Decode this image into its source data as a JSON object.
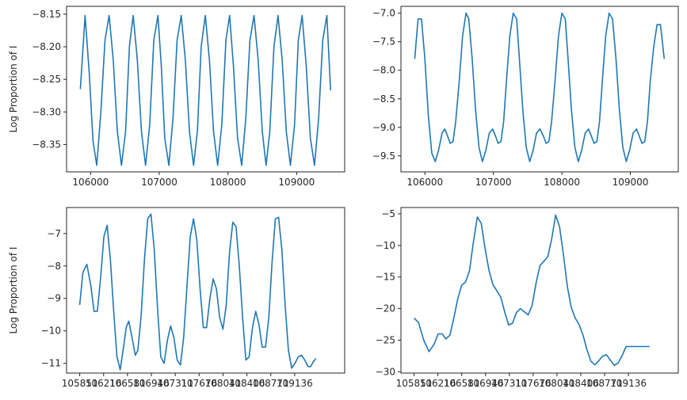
{
  "chart_data": [
    {
      "type": "line",
      "ylabel": "Log Proportion of I",
      "xlim": [
        105650,
        109700
      ],
      "ylim": [
        -8.392,
        -8.138
      ],
      "xticks": [
        106000,
        107000,
        108000,
        109000
      ],
      "xtick_labels": [
        "106000",
        "107000",
        "108000",
        "109000"
      ],
      "yticks": [
        -8.35,
        -8.3,
        -8.25,
        -8.2,
        -8.15
      ],
      "ytick_labels": [
        "−8.35",
        "−8.30",
        "−8.25",
        "−8.20",
        "−8.15"
      ],
      "series": [
        {
          "color": "#1f77b4",
          "x": [
            105851,
            105920,
            105980,
            106035,
            106090,
            106150,
            106210,
            106270,
            106330,
            106390,
            106450,
            106510,
            106565,
            106620,
            106680,
            106740,
            106800,
            106860,
            106920,
            106980,
            107030,
            107080,
            107140,
            107200,
            107260,
            107320,
            107380,
            107440,
            107500,
            107555,
            107610,
            107670,
            107730,
            107790,
            107850,
            107910,
            107970,
            108025,
            108080,
            108140,
            108200,
            108260,
            108320,
            108380,
            108440,
            108500,
            108555,
            108610,
            108670,
            108730,
            108790,
            108850,
            108910,
            108970,
            109025,
            109080,
            109140,
            109200,
            109260,
            109320,
            109380,
            109440,
            109495
          ],
          "y": [
            -8.265,
            -8.152,
            -8.24,
            -8.345,
            -8.382,
            -8.3,
            -8.19,
            -8.152,
            -8.22,
            -8.33,
            -8.382,
            -8.33,
            -8.2,
            -8.152,
            -8.22,
            -8.33,
            -8.382,
            -8.32,
            -8.19,
            -8.152,
            -8.23,
            -8.34,
            -8.382,
            -8.31,
            -8.19,
            -8.152,
            -8.22,
            -8.33,
            -8.382,
            -8.33,
            -8.2,
            -8.152,
            -8.22,
            -8.33,
            -8.382,
            -8.32,
            -8.19,
            -8.152,
            -8.23,
            -8.34,
            -8.382,
            -8.31,
            -8.19,
            -8.152,
            -8.22,
            -8.33,
            -8.382,
            -8.33,
            -8.2,
            -8.152,
            -8.22,
            -8.33,
            -8.382,
            -8.32,
            -8.19,
            -8.152,
            -8.23,
            -8.34,
            -8.382,
            -8.31,
            -8.19,
            -8.152,
            -8.267
          ]
        }
      ]
    },
    {
      "type": "line",
      "ylabel": "",
      "xlim": [
        105650,
        109700
      ],
      "ylim": [
        -9.78,
        -6.88
      ],
      "xticks": [
        106000,
        107000,
        108000,
        109000
      ],
      "xtick_labels": [
        "106000",
        "107000",
        "108000",
        "109000"
      ],
      "yticks": [
        -9.5,
        -9.0,
        -8.5,
        -8.0,
        -7.5,
        -7.0
      ],
      "ytick_labels": [
        "−9.5",
        "−9.0",
        "−8.5",
        "−8.0",
        "−7.5",
        "−7.0"
      ],
      "series": [
        {
          "color": "#1f77b4",
          "x": [
            105851,
            105900,
            105950,
            106000,
            106050,
            106100,
            106150,
            106200,
            106250,
            106290,
            106330,
            106370,
            106410,
            106450,
            106500,
            106550,
            106600,
            106640,
            106690,
            106740,
            106790,
            106840,
            106890,
            106940,
            106990,
            107030,
            107070,
            107110,
            107150,
            107190,
            107240,
            107290,
            107340,
            107380,
            107430,
            107480,
            107530,
            107580,
            107630,
            107680,
            107730,
            107770,
            107810,
            107850,
            107900,
            107950,
            108000,
            108050,
            108090,
            108140,
            108190,
            108240,
            108290,
            108340,
            108390,
            108430,
            108470,
            108510,
            108550,
            108590,
            108640,
            108690,
            108740,
            108790,
            108840,
            108890,
            108940,
            108990,
            109040,
            109090,
            109130,
            109170,
            109210,
            109250,
            109290,
            109340,
            109390,
            109440,
            109495
          ],
          "y": [
            -7.8,
            -7.1,
            -7.1,
            -7.8,
            -8.8,
            -9.45,
            -9.6,
            -9.4,
            -9.1,
            -9.03,
            -9.15,
            -9.28,
            -9.25,
            -8.9,
            -8.2,
            -7.4,
            -7.0,
            -7.1,
            -7.8,
            -8.7,
            -9.35,
            -9.6,
            -9.4,
            -9.1,
            -9.03,
            -9.15,
            -9.28,
            -9.25,
            -8.9,
            -8.2,
            -7.4,
            -7.0,
            -7.1,
            -7.8,
            -8.7,
            -9.35,
            -9.6,
            -9.4,
            -9.1,
            -9.03,
            -9.15,
            -9.28,
            -9.25,
            -8.9,
            -8.2,
            -7.4,
            -7.0,
            -7.1,
            -7.8,
            -8.7,
            -9.35,
            -9.6,
            -9.4,
            -9.1,
            -9.03,
            -9.15,
            -9.28,
            -9.25,
            -8.9,
            -8.2,
            -7.4,
            -7.0,
            -7.1,
            -7.8,
            -8.7,
            -9.35,
            -9.6,
            -9.4,
            -9.1,
            -9.03,
            -9.15,
            -9.28,
            -9.25,
            -8.9,
            -8.2,
            -7.6,
            -7.2,
            -7.2,
            -7.8
          ],
          "note_points_end": true
        }
      ]
    },
    {
      "type": "line",
      "ylabel": "Log Proportion of I",
      "xlim": [
        105650,
        109900
      ],
      "ylim": [
        -11.3,
        -6.2
      ],
      "xticks": [
        105851,
        106216,
        106581,
        106946,
        107311,
        107676,
        108041,
        108406,
        108771,
        109136
      ],
      "xtick_labels": [
        "105851",
        "106216",
        "106581",
        "106946",
        "107311",
        "107676",
        "108041",
        "108406",
        "108771",
        "109136"
      ],
      "yticks": [
        -11,
        -10,
        -9,
        -8,
        -7
      ],
      "ytick_labels": [
        "−11",
        "−10",
        "−9",
        "−8",
        "−7"
      ],
      "series": [
        {
          "color": "#1f77b4",
          "x": [
            105851,
            105900,
            105960,
            106020,
            106070,
            106120,
            106170,
            106220,
            106270,
            106320,
            106370,
            106420,
            106470,
            106520,
            106560,
            106600,
            106650,
            106700,
            106740,
            106790,
            106840,
            106890,
            106940,
            106990,
            107040,
            107090,
            107140,
            107190,
            107240,
            107290,
            107340,
            107390,
            107440,
            107490,
            107540,
            107590,
            107640,
            107690,
            107740,
            107790,
            107840,
            107890,
            107940,
            107990,
            108040,
            108090,
            108140,
            108190,
            108240,
            108290,
            108340,
            108390,
            108440,
            108490,
            108540,
            108590,
            108640,
            108690,
            108740,
            108790,
            108840,
            108890,
            108940,
            108990,
            109040,
            109090,
            109140,
            109190,
            109240,
            109290,
            109340,
            109380,
            109420,
            109460
          ],
          "y": [
            -9.2,
            -8.2,
            -7.95,
            -8.6,
            -9.4,
            -9.4,
            -8.4,
            -7.1,
            -6.75,
            -7.8,
            -9.4,
            -10.8,
            -11.2,
            -10.5,
            -9.9,
            -9.7,
            -10.2,
            -10.75,
            -10.6,
            -9.5,
            -7.8,
            -6.55,
            -6.4,
            -7.5,
            -9.3,
            -10.8,
            -11.0,
            -10.3,
            -9.85,
            -10.2,
            -10.9,
            -11.05,
            -10.2,
            -8.6,
            -7.1,
            -6.55,
            -7.2,
            -8.7,
            -9.9,
            -9.9,
            -9.0,
            -8.4,
            -8.7,
            -9.6,
            -9.95,
            -9.2,
            -7.6,
            -6.65,
            -6.8,
            -8.0,
            -9.6,
            -10.9,
            -10.8,
            -9.9,
            -9.4,
            -9.8,
            -10.5,
            -10.5,
            -9.6,
            -7.9,
            -6.55,
            -6.5,
            -7.5,
            -9.2,
            -10.6,
            -11.15,
            -11.0,
            -10.8,
            -10.75,
            -10.9,
            -11.1,
            -11.1,
            -10.95,
            -10.85
          ]
        }
      ]
    },
    {
      "type": "line",
      "ylabel": "",
      "xlim": [
        105650,
        109900
      ],
      "ylim": [
        -30.2,
        -4.0
      ],
      "xticks": [
        105851,
        106216,
        106581,
        106946,
        107311,
        107676,
        108041,
        108406,
        108771,
        109136
      ],
      "xtick_labels": [
        "105851",
        "106216",
        "106581",
        "106946",
        "107311",
        "107676",
        "108041",
        "108406",
        "108771",
        "109136"
      ],
      "yticks": [
        -30,
        -25,
        -20,
        -15,
        -10,
        -5
      ],
      "ytick_labels": [
        "−30",
        "−25",
        "−20",
        "−15",
        "−10",
        "−5"
      ],
      "series": [
        {
          "color": "#1f77b4",
          "x": [
            105851,
            105920,
            106000,
            106080,
            106160,
            106220,
            106280,
            106340,
            106400,
            106460,
            106520,
            106580,
            106640,
            106700,
            106760,
            106820,
            106880,
            106940,
            107000,
            107060,
            107120,
            107180,
            107240,
            107300,
            107360,
            107420,
            107480,
            107540,
            107600,
            107660,
            107720,
            107780,
            107840,
            107900,
            107960,
            108020,
            108080,
            108140,
            108200,
            108260,
            108320,
            108380,
            108440,
            108500,
            108560,
            108620,
            108680,
            108740,
            108800,
            108860,
            108920,
            108980,
            109040,
            109100,
            109160,
            109220,
            109280,
            109340,
            109400,
            109460
          ],
          "y": [
            -21.5,
            -22.2,
            -25.0,
            -26.8,
            -25.6,
            -24.0,
            -24.0,
            -24.8,
            -24.2,
            -21.5,
            -18.5,
            -16.3,
            -15.8,
            -14.0,
            -9.5,
            -5.5,
            -6.5,
            -10.5,
            -14.0,
            -16.2,
            -17.2,
            -18.2,
            -20.5,
            -22.6,
            -22.3,
            -20.6,
            -20.0,
            -20.5,
            -21.0,
            -19.5,
            -16.0,
            -13.2,
            -12.5,
            -11.8,
            -9.0,
            -5.2,
            -7.0,
            -11.5,
            -16.5,
            -19.8,
            -21.5,
            -22.5,
            -24.2,
            -26.5,
            -28.3,
            -28.9,
            -28.3,
            -27.5,
            -27.3,
            -28.2,
            -29.0,
            -28.6,
            -27.4,
            -26.0,
            -26.0,
            -26.0,
            -26.0,
            -26.0,
            -26.0,
            -26.0
          ]
        }
      ]
    }
  ]
}
